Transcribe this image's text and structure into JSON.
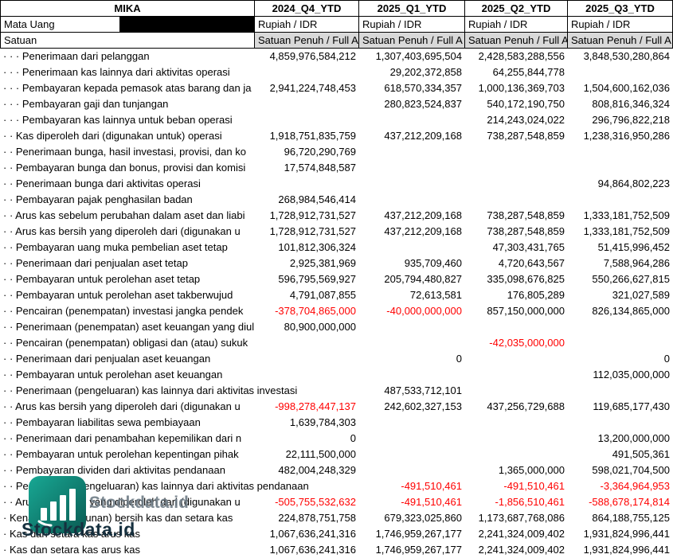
{
  "header": {
    "ticker": "MIKA",
    "columns": [
      "2024_Q4_YTD",
      "2025_Q1_YTD",
      "2025_Q2_YTD",
      "2025_Q3_YTD"
    ]
  },
  "meta": {
    "currency_label": "Mata Uang",
    "currency_values": [
      "Rupiah / IDR",
      "Rupiah / IDR",
      "Rupiah / IDR",
      "Rupiah / IDR"
    ],
    "unit_label": "Satuan",
    "unit_values": [
      "Satuan Penuh / Full A",
      "Satuan Penuh / Full A",
      "Satuan Penuh / Full A",
      "Satuan Penuh / Full A"
    ]
  },
  "colors": {
    "negative": "#FF0000",
    "unit_row_bg": "#D9D9D9",
    "watermark_teal_light": "#18A894",
    "watermark_teal_dark": "#0A5A52",
    "watermark_text_dark": "#16303F",
    "watermark_text_gray": "#6E7B85"
  },
  "watermark": {
    "text": "Stockdata.id",
    "icon": "bar-chart-logo-icon"
  },
  "rows": [
    {
      "label": "· · · Penerimaan dari pelanggan",
      "values": [
        "4,859,976,584,212",
        "1,307,403,695,504",
        "2,428,583,288,556",
        "3,848,530,280,864"
      ]
    },
    {
      "label": "· · · Penerimaan kas lainnya dari aktivitas operasi",
      "values": [
        "",
        "29,202,372,858",
        "64,255,844,778",
        ""
      ]
    },
    {
      "label": "· · · Pembayaran kepada pemasok atas barang dan ja",
      "values": [
        "2,941,224,748,453",
        "618,570,334,357",
        "1,000,136,369,703",
        "1,504,600,162,036"
      ]
    },
    {
      "label": "· · · Pembayaran gaji dan tunjangan",
      "values": [
        "",
        "280,823,524,837",
        "540,172,190,750",
        "808,816,346,324"
      ]
    },
    {
      "label": "· · · Pembayaran kas lainnya untuk beban operasi",
      "values": [
        "",
        "",
        "214,243,024,022",
        "296,796,822,218"
      ]
    },
    {
      "label": "· · Kas diperoleh dari (digunakan untuk) operasi",
      "values": [
        "1,918,751,835,759",
        "437,212,209,168",
        "738,287,548,859",
        "1,238,316,950,286"
      ]
    },
    {
      "label": "· · Penerimaan bunga, hasil investasi, provisi, dan ko",
      "values": [
        "96,720,290,769",
        "",
        "",
        ""
      ]
    },
    {
      "label": "· · Pembayaran bunga dan bonus, provisi dan komisi",
      "values": [
        "17,574,848,587",
        "",
        "",
        ""
      ]
    },
    {
      "label": "· · Penerimaan bunga dari aktivitas operasi",
      "values": [
        "",
        "",
        "",
        "94,864,802,223"
      ]
    },
    {
      "label": "· · Pembayaran pajak penghasilan badan",
      "values": [
        "268,984,546,414",
        "",
        "",
        ""
      ]
    },
    {
      "label": "· · Arus kas sebelum perubahan dalam aset dan liabi",
      "values": [
        "1,728,912,731,527",
        "437,212,209,168",
        "738,287,548,859",
        "1,333,181,752,509"
      ]
    },
    {
      "label": "· · Arus kas bersih yang diperoleh dari (digunakan u",
      "values": [
        "1,728,912,731,527",
        "437,212,209,168",
        "738,287,548,859",
        "1,333,181,752,509"
      ]
    },
    {
      "label": "· · Pembayaran uang muka pembelian aset tetap",
      "values": [
        "101,812,306,324",
        "",
        "47,303,431,765",
        "51,415,996,452"
      ]
    },
    {
      "label": "· · Penerimaan dari penjualan aset tetap",
      "values": [
        "2,925,381,969",
        "935,709,460",
        "4,720,643,567",
        "7,588,964,286"
      ]
    },
    {
      "label": "· · Pembayaran untuk perolehan aset tetap",
      "values": [
        "596,795,569,927",
        "205,794,480,827",
        "335,098,676,825",
        "550,266,627,815"
      ]
    },
    {
      "label": "· · Pembayaran untuk perolehan aset takberwujud",
      "values": [
        "4,791,087,855",
        "72,613,581",
        "176,805,289",
        "321,027,589"
      ]
    },
    {
      "label": "· · Pencairan (penempatan) investasi jangka pendek",
      "values": [
        "-378,704,865,000",
        "-40,000,000,000",
        "857,150,000,000",
        "826,134,865,000"
      ]
    },
    {
      "label": "· · Penerimaan (penempatan) aset keuangan yang diul",
      "values": [
        "80,900,000,000",
        "",
        "",
        ""
      ]
    },
    {
      "label": "· · Pencairan (penempatan) obligasi dan (atau) sukuk",
      "values": [
        "",
        "",
        "-42,035,000,000",
        ""
      ]
    },
    {
      "label": "· · Penerimaan dari penjualan aset keuangan",
      "values": [
        "",
        "0",
        "",
        "0"
      ]
    },
    {
      "label": "· · Pembayaran untuk perolehan aset keuangan",
      "values": [
        "",
        "",
        "",
        "112,035,000,000"
      ]
    },
    {
      "label": "· · Penerimaan (pengeluaran) kas lainnya dari aktivitas investasi",
      "values": [
        "",
        "487,533,712,101",
        "",
        ""
      ]
    },
    {
      "label": "· · Arus kas bersih yang diperoleh dari (digunakan u",
      "values": [
        "-998,278,447,137",
        "242,602,327,153",
        "437,256,729,688",
        "119,685,177,430"
      ]
    },
    {
      "label": "· · Pembayaran liabilitas sewa pembiayaan",
      "values": [
        "1,639,784,303",
        "",
        "",
        ""
      ]
    },
    {
      "label": "· · Penerimaan dari penambahan kepemilikan dari n",
      "values": [
        "0",
        "",
        "",
        "13,200,000,000"
      ]
    },
    {
      "label": "· · Pembayaran untuk perolehan kepentingan pihak",
      "values": [
        "22,111,500,000",
        "",
        "",
        "491,505,361"
      ]
    },
    {
      "label": "· · Pembayaran dividen dari aktivitas pendanaan",
      "values": [
        "482,004,248,329",
        "",
        "1,365,000,000",
        "598,021,704,500"
      ]
    },
    {
      "label": "· · Penerimaan (pengeluaran) kas lainnya dari aktivitas pendanaan",
      "values": [
        "",
        "-491,510,461",
        "-491,510,461",
        "-3,364,964,953"
      ]
    },
    {
      "label": "· · Arus kas bersih yang diperoleh dari (digunakan u",
      "values": [
        "-505,755,532,632",
        "-491,510,461",
        "-1,856,510,461",
        "-588,678,174,814"
      ]
    },
    {
      "label": "· Kenaikan (penurunan) bersih kas dan setara kas",
      "values": [
        "224,878,751,758",
        "679,323,025,860",
        "1,173,687,768,086",
        "864,188,755,125"
      ]
    },
    {
      "label": "· Kas dan setara kas arus kas",
      "values": [
        "1,067,636,241,316",
        "1,746,959,267,177",
        "2,241,324,009,402",
        "1,931,824,996,441"
      ]
    },
    {
      "label": "· Kas dan setara kas arus kas",
      "values": [
        "1,067,636,241,316",
        "1,746,959,267,177",
        "2,241,324,009,402",
        "1,931,824,996,441"
      ]
    }
  ]
}
